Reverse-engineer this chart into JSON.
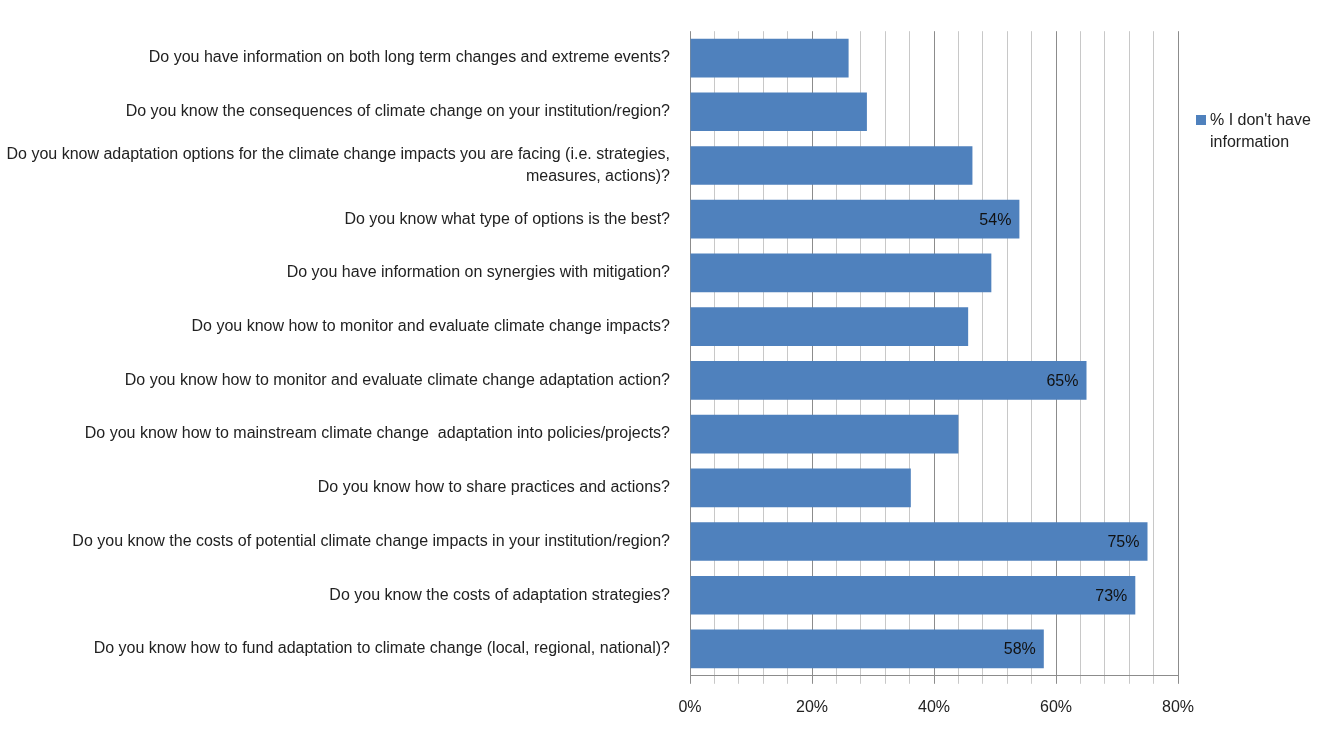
{
  "chart_data": {
    "type": "bar",
    "orientation": "horizontal",
    "categories": [
      "Do you have information on both long term changes and extreme events?",
      "Do you know the consequences of climate change on your institution/region?",
      "Do you know adaptation options for the climate change impacts you are facing (i.e. strategies, measures, actions)?",
      "Do you know what type of options is the best?",
      "Do you have information on synergies with mitigation?",
      "Do you know how to monitor and evaluate climate change impacts?",
      "Do you know how to monitor and evaluate climate change adaptation action?",
      "Do you know how to mainstream climate change  adaptation into policies/projects?",
      "Do you know how to share practices and actions?",
      "Do you know the costs of potential climate change impacts in your institution/region?",
      "Do you know the costs of adaptation strategies?",
      "Do you know how to fund adaptation to climate change (local, regional, national)?"
    ],
    "series": [
      {
        "name": "% I don't have information",
        "color": "#4f81bd",
        "values": [
          26,
          29,
          46.3,
          54,
          49.4,
          45.6,
          65,
          44,
          36.2,
          75,
          73,
          58
        ],
        "value_labels": [
          null,
          null,
          null,
          "54%",
          null,
          null,
          "65%",
          null,
          null,
          "75%",
          "73%",
          "58%"
        ]
      }
    ],
    "xlim": [
      0,
      80
    ],
    "xticks": [
      {
        "value": 0,
        "label": "0%"
      },
      {
        "value": 4,
        "label": null
      },
      {
        "value": 8,
        "label": null
      },
      {
        "value": 12,
        "label": null
      },
      {
        "value": 16,
        "label": null
      },
      {
        "value": 20,
        "label": "20%"
      },
      {
        "value": 24,
        "label": null
      },
      {
        "value": 28,
        "label": null
      },
      {
        "value": 32,
        "label": null
      },
      {
        "value": 36,
        "label": null
      },
      {
        "value": 40,
        "label": "40%"
      },
      {
        "value": 44,
        "label": null
      },
      {
        "value": 48,
        "label": null
      },
      {
        "value": 52,
        "label": null
      },
      {
        "value": 56,
        "label": null
      },
      {
        "value": 60,
        "label": "60%"
      },
      {
        "value": 64,
        "label": null
      },
      {
        "value": 68,
        "label": null
      },
      {
        "value": 72,
        "label": null
      },
      {
        "value": 76,
        "label": null
      },
      {
        "value": 80,
        "label": "80%"
      }
    ],
    "grid": "x",
    "legend": "right"
  }
}
